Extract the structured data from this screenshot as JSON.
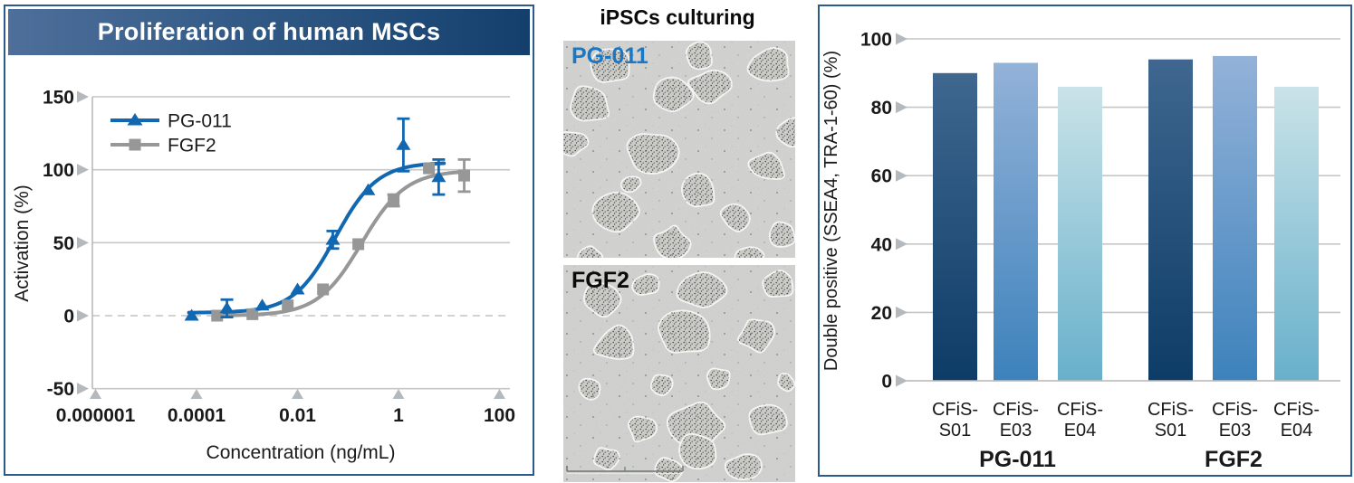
{
  "left_panel": {
    "title": "Proliferation of human MSCs",
    "header_gradient": [
      "#4e6f9a",
      "#143f6c"
    ],
    "border_color": "#2b5a8b"
  },
  "middle_panel": {
    "title": "iPSCs culturing",
    "top_image_label": "PG-011",
    "top_image_label_color": "#1a77c5",
    "bottom_image_label": "FGF2",
    "bottom_image_label_color": "#0a0a0a"
  },
  "right_panel": {
    "border_color": "#2b5a8b"
  },
  "chart_data": [
    {
      "type": "line",
      "panel": "left",
      "title": "Proliferation of human MSCs",
      "xlabel": "Concentration (ng/mL)",
      "ylabel": "Activation (%)",
      "x_scale": "log10",
      "xlim": [
        1e-06,
        100
      ],
      "ylim": [
        -50,
        150
      ],
      "x_tick_values": [
        1e-06,
        0.0001,
        0.01,
        1,
        100
      ],
      "x_tick_labels": [
        "0.000001",
        "0.0001",
        "0.01",
        "1",
        "100"
      ],
      "y_ticks": [
        150,
        100,
        50,
        0,
        -50
      ],
      "grid": true,
      "zero_line": "dashed",
      "legend_position": "top-left",
      "series": [
        {
          "name": "PG-011",
          "color": "#1267b1",
          "marker": "triangle",
          "x": [
            8e-05,
            0.0004,
            0.002,
            0.01,
            0.05,
            0.25,
            1.25,
            6.25
          ],
          "y": [
            0,
            5,
            7,
            18,
            52,
            86,
            117,
            95
          ],
          "yerr": [
            0,
            6,
            0,
            0,
            6,
            0,
            18,
            12
          ],
          "fit": {
            "bottom": 2,
            "top": 105,
            "log_ec50": -1.25,
            "hill": 1.05,
            "range": [
              -4.15,
              0.9
            ]
          }
        },
        {
          "name": "FGF2",
          "color": "#979797",
          "marker": "square",
          "x": [
            0.000256,
            0.00128,
            0.0064,
            0.032,
            0.16,
            0.8,
            4,
            20
          ],
          "y": [
            0,
            1,
            7,
            18,
            49,
            79,
            101,
            96
          ],
          "yerr": [
            0,
            0,
            0,
            0,
            0,
            4,
            0,
            11
          ],
          "fit": {
            "bottom": 0,
            "top": 99.5,
            "log_ec50": -0.73,
            "hill": 1.0,
            "range": [
              -3.65,
              1.35
            ]
          }
        }
      ]
    },
    {
      "type": "bar",
      "panel": "right",
      "ylabel": "Double positive (SSEA4, TRA-1-60) (%)",
      "ylim": [
        0,
        100
      ],
      "y_ticks": [
        100,
        80,
        60,
        40,
        20,
        0
      ],
      "grid": true,
      "groups": [
        {
          "label": "PG-011",
          "bars": [
            {
              "category": [
                "CFiS-",
                "S01"
              ],
              "value": 90,
              "style": "dark"
            },
            {
              "category": [
                "CFiS-",
                "E03"
              ],
              "value": 93,
              "style": "medium"
            },
            {
              "category": [
                "CFiS-",
                "E04"
              ],
              "value": 86,
              "style": "light"
            }
          ]
        },
        {
          "label": "FGF2",
          "bars": [
            {
              "category": [
                "CFiS-",
                "S01"
              ],
              "value": 94,
              "style": "dark"
            },
            {
              "category": [
                "CFiS-",
                "E03"
              ],
              "value": 95,
              "style": "medium"
            },
            {
              "category": [
                "CFiS-",
                "E04"
              ],
              "value": 86,
              "style": "light"
            }
          ]
        }
      ],
      "bar_styles": {
        "dark": {
          "top": "#3f678f",
          "bottom": "#0d3c66"
        },
        "medium": {
          "top": "#93b2d8",
          "bottom": "#3d82bc"
        },
        "light": {
          "top": "#c9e3e8",
          "bottom": "#68b0cb"
        }
      }
    }
  ]
}
